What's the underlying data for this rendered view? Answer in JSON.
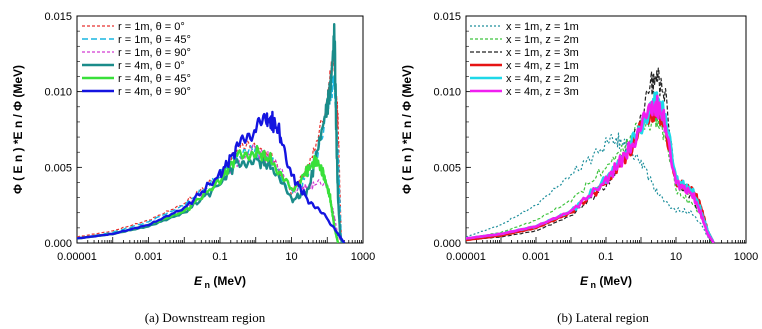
{
  "chart_data": [
    {
      "type": "line",
      "caption": "(a) Downstream region",
      "xlabel_main": "E",
      "xlabel_sub": "n",
      "xlabel_unit": " (MeV)",
      "ylabel": "Φ ( E n ) *E n / Φ  (MeV)",
      "x_scale": "log",
      "xlim": [
        1e-05,
        1000
      ],
      "ylim": [
        0,
        0.015
      ],
      "x_ticks": [
        "0.00001",
        "0.001",
        "0.1",
        "10",
        "1000"
      ],
      "y_ticks": [
        "0.000",
        "0.005",
        "0.010",
        "0.015"
      ],
      "legend_position": "top-left",
      "series": [
        {
          "name": "r = 1m,  θ = 0°",
          "color": "#e8312f",
          "dash": "3,2",
          "width": 1.2,
          "x": [
            1e-05,
            0.0001,
            0.001,
            0.01,
            0.1,
            0.3,
            1,
            3,
            10,
            20,
            50,
            100,
            150,
            200,
            250
          ],
          "y": [
            0.0004,
            0.0008,
            0.0015,
            0.0026,
            0.0045,
            0.0061,
            0.0063,
            0.0055,
            0.0034,
            0.0042,
            0.0065,
            0.0095,
            0.0122,
            0.008,
            0.0
          ]
        },
        {
          "name": "r = 1m,  θ = 45°",
          "color": "#19b6e0",
          "dash": "6,3",
          "width": 1.4,
          "x": [
            1e-05,
            0.0001,
            0.001,
            0.01,
            0.1,
            0.3,
            1,
            3,
            10,
            20,
            50,
            100,
            150,
            200,
            250
          ],
          "y": [
            0.0003,
            0.0007,
            0.0014,
            0.0025,
            0.0044,
            0.0058,
            0.006,
            0.0052,
            0.0031,
            0.004,
            0.0058,
            0.0085,
            0.011,
            0.006,
            0.0
          ]
        },
        {
          "name": "r = 1m,  θ = 90°",
          "color": "#d23bd2",
          "dash": "3,2",
          "width": 1.2,
          "x": [
            1e-05,
            0.0001,
            0.001,
            0.01,
            0.1,
            0.3,
            1,
            3,
            10,
            20,
            50,
            100,
            150,
            200,
            250
          ],
          "y": [
            0.0003,
            0.0006,
            0.0012,
            0.0022,
            0.004,
            0.0055,
            0.0062,
            0.0054,
            0.0036,
            0.0036,
            0.0039,
            0.0037,
            0.002,
            0.0005,
            0.0
          ]
        },
        {
          "name": "r = 4m,  θ = 0°",
          "color": "#1a8c8a",
          "dash": "",
          "width": 2.4,
          "x": [
            1e-05,
            0.0001,
            0.001,
            0.01,
            0.1,
            0.3,
            1,
            3,
            10,
            30,
            80,
            120,
            160,
            180,
            200,
            230,
            260
          ],
          "y": [
            0.0003,
            0.0006,
            0.0011,
            0.002,
            0.0039,
            0.0054,
            0.0055,
            0.005,
            0.0028,
            0.0035,
            0.008,
            0.01,
            0.0138,
            0.007,
            0.003,
            0.0005,
            0.0
          ]
        },
        {
          "name": "r = 4m,  θ = 45°",
          "color": "#39e03a",
          "dash": "",
          "width": 2.4,
          "x": [
            1e-05,
            0.0001,
            0.001,
            0.01,
            0.1,
            0.3,
            1,
            3,
            10,
            20,
            50,
            80,
            120,
            160,
            200
          ],
          "y": [
            0.0003,
            0.0006,
            0.0012,
            0.0021,
            0.0041,
            0.0058,
            0.0061,
            0.0054,
            0.0035,
            0.0044,
            0.0055,
            0.0045,
            0.003,
            0.001,
            0.0
          ]
        },
        {
          "name": "r = 4m,  θ = 90°",
          "color": "#1414e0",
          "dash": "",
          "width": 2.4,
          "x": [
            1e-05,
            0.0001,
            0.001,
            0.01,
            0.1,
            0.3,
            1,
            2,
            3,
            5,
            10,
            30,
            100,
            200,
            300
          ],
          "y": [
            0.0003,
            0.0006,
            0.0012,
            0.0023,
            0.0045,
            0.0063,
            0.0075,
            0.0081,
            0.008,
            0.0072,
            0.0045,
            0.0028,
            0.0016,
            0.0006,
            0.0
          ]
        }
      ]
    },
    {
      "type": "line",
      "caption": "(b) Lateral region",
      "xlabel_main": "E",
      "xlabel_sub": "n",
      "xlabel_unit": " (MeV)",
      "ylabel": "Φ ( E n ) *E n / Φ  (MeV)",
      "x_scale": "log",
      "xlim": [
        1e-05,
        1000
      ],
      "ylim": [
        0,
        0.015
      ],
      "x_ticks": [
        "0.00001",
        "0.001",
        "0.1",
        "10",
        "1000"
      ],
      "y_ticks": [
        "0.000",
        "0.005",
        "0.010",
        "0.015"
      ],
      "legend_position": "top-left",
      "series": [
        {
          "name": "x = 1m,  z = 1m",
          "color": "#1e8f9c",
          "dash": "2,2",
          "width": 1.2,
          "x": [
            1e-05,
            0.0001,
            0.001,
            0.01,
            0.1,
            0.2,
            0.5,
            1,
            3,
            10,
            30,
            60,
            100
          ],
          "y": [
            0.0004,
            0.0012,
            0.0025,
            0.0045,
            0.0065,
            0.0068,
            0.0063,
            0.0055,
            0.0032,
            0.0022,
            0.002,
            0.001,
            0.0
          ]
        },
        {
          "name": "x = 1m,  z = 2m",
          "color": "#3fc43f",
          "dash": "3,2",
          "width": 1.2,
          "x": [
            1e-05,
            0.0001,
            0.001,
            0.01,
            0.1,
            0.5,
            1,
            2,
            3,
            5,
            10,
            30,
            60,
            100
          ],
          "y": [
            0.0003,
            0.0007,
            0.0015,
            0.0028,
            0.005,
            0.0068,
            0.0078,
            0.0082,
            0.0082,
            0.007,
            0.0035,
            0.0025,
            0.0015,
            0.0
          ]
        },
        {
          "name": "x = 1m,  z = 3m",
          "color": "#222222",
          "dash": "4,2",
          "width": 1.2,
          "x": [
            1e-05,
            0.0001,
            0.001,
            0.01,
            0.1,
            0.5,
            1,
            2,
            3,
            5,
            10,
            30,
            60,
            100
          ],
          "y": [
            0.0002,
            0.0004,
            0.0008,
            0.0018,
            0.0038,
            0.0065,
            0.0085,
            0.0105,
            0.011,
            0.0095,
            0.004,
            0.003,
            0.0015,
            0.0
          ]
        },
        {
          "name": "x = 4m,  z = 1m",
          "color": "#e61414",
          "dash": "",
          "width": 2.6,
          "x": [
            1e-05,
            0.0001,
            0.001,
            0.01,
            0.1,
            0.5,
            1,
            2,
            3,
            5,
            10,
            30,
            50,
            80,
            120
          ],
          "y": [
            0.0002,
            0.0005,
            0.001,
            0.002,
            0.004,
            0.0062,
            0.0075,
            0.0086,
            0.0088,
            0.0078,
            0.004,
            0.0035,
            0.0025,
            0.0008,
            0.0
          ]
        },
        {
          "name": "x = 4m,  z = 2m",
          "color": "#1ed8e8",
          "dash": "",
          "width": 2.6,
          "x": [
            1e-05,
            0.0001,
            0.001,
            0.01,
            0.1,
            0.5,
            1,
            2,
            3,
            5,
            10,
            30,
            50,
            80,
            120
          ],
          "y": [
            0.0003,
            0.0006,
            0.0011,
            0.0021,
            0.0042,
            0.0064,
            0.0078,
            0.009,
            0.0095,
            0.0082,
            0.0042,
            0.0034,
            0.0022,
            0.0008,
            0.0
          ]
        },
        {
          "name": "x = 4m,  z = 3m",
          "color": "#f01ef0",
          "dash": "",
          "width": 2.6,
          "x": [
            1e-05,
            0.0001,
            0.001,
            0.01,
            0.1,
            0.5,
            1,
            2,
            3,
            5,
            10,
            30,
            50,
            80,
            120
          ],
          "y": [
            0.0003,
            0.0006,
            0.0011,
            0.0021,
            0.0041,
            0.0063,
            0.0077,
            0.0088,
            0.009,
            0.008,
            0.004,
            0.0032,
            0.002,
            0.0006,
            0.0
          ]
        }
      ]
    }
  ]
}
